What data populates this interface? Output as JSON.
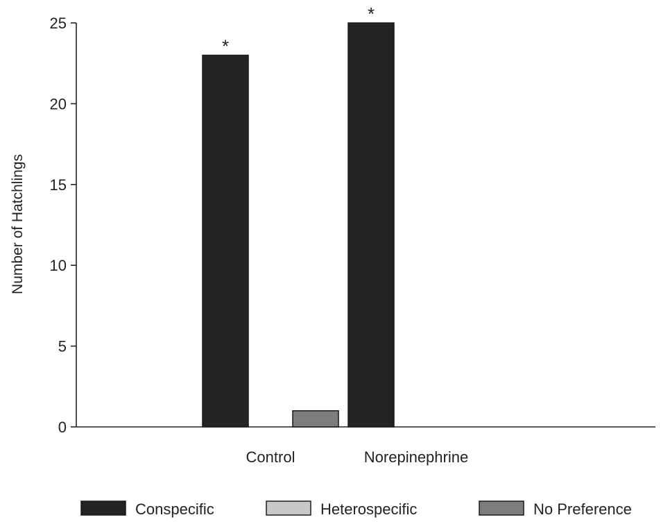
{
  "chart_data": {
    "type": "bar",
    "title": "",
    "xlabel": "",
    "ylabel": "Number of Hatchlings",
    "ylim": [
      0,
      25
    ],
    "yticks": [
      0,
      5,
      10,
      15,
      20,
      25
    ],
    "grid": false,
    "legend_position": "bottom",
    "categories": [
      "Control",
      "Norepinephrine"
    ],
    "series": [
      {
        "name": "Conspecific",
        "color": "#232323",
        "values": [
          23,
          25
        ]
      },
      {
        "name": "Heterospecific",
        "color": "#c8c8c8",
        "values": [
          0,
          0
        ]
      },
      {
        "name": "No Preference",
        "color": "#7d7d7d",
        "values": [
          1,
          0
        ]
      }
    ],
    "annotations": [
      {
        "category": "Control",
        "series": "Conspecific",
        "text": "*"
      },
      {
        "category": "Norepinephrine",
        "series": "Conspecific",
        "text": "*"
      }
    ]
  }
}
